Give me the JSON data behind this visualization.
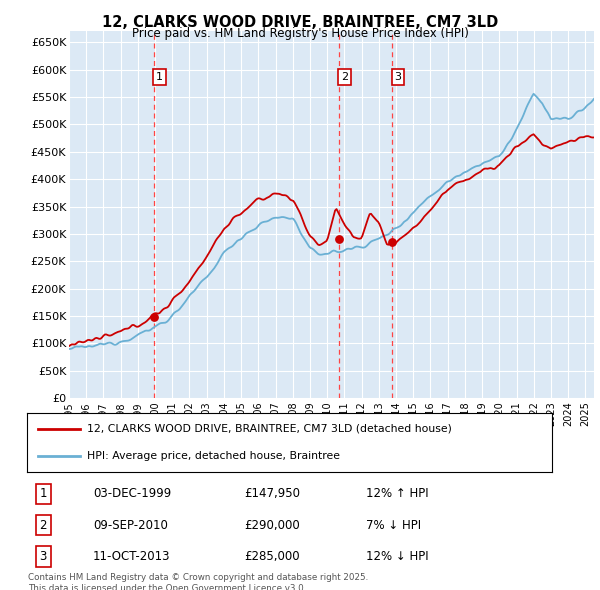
{
  "title": "12, CLARKS WOOD DRIVE, BRAINTREE, CM7 3LD",
  "subtitle": "Price paid vs. HM Land Registry's House Price Index (HPI)",
  "ylabel_ticks": [
    "£0",
    "£50K",
    "£100K",
    "£150K",
    "£200K",
    "£250K",
    "£300K",
    "£350K",
    "£400K",
    "£450K",
    "£500K",
    "£550K",
    "£600K",
    "£650K"
  ],
  "ytick_values": [
    0,
    50000,
    100000,
    150000,
    200000,
    250000,
    300000,
    350000,
    400000,
    450000,
    500000,
    550000,
    600000,
    650000
  ],
  "xmin": 1995.0,
  "xmax": 2025.5,
  "ymin": 0,
  "ymax": 670000,
  "sales": [
    {
      "date": 1999.92,
      "price": 147950,
      "label": "1"
    },
    {
      "date": 2010.69,
      "price": 290000,
      "label": "2"
    },
    {
      "date": 2013.78,
      "price": 285000,
      "label": "3"
    }
  ],
  "sale_details": [
    {
      "num": "1",
      "date": "03-DEC-1999",
      "price": "£147,950",
      "hpi": "12% ↑ HPI"
    },
    {
      "num": "2",
      "date": "09-SEP-2010",
      "price": "£290,000",
      "hpi": "7% ↓ HPI"
    },
    {
      "num": "3",
      "date": "11-OCT-2013",
      "price": "£285,000",
      "hpi": "12% ↓ HPI"
    }
  ],
  "legend_entries": [
    {
      "label": "12, CLARKS WOOD DRIVE, BRAINTREE, CM7 3LD (detached house)",
      "color": "#cc0000"
    },
    {
      "label": "HPI: Average price, detached house, Braintree",
      "color": "#6ab0d4"
    }
  ],
  "footer": "Contains HM Land Registry data © Crown copyright and database right 2025.\nThis data is licensed under the Open Government Licence v3.0.",
  "bg_color": "#dce9f5",
  "grid_color": "#ffffff",
  "red_line_color": "#cc0000",
  "blue_line_color": "#6ab0d4",
  "vline_color": "#ff4444"
}
